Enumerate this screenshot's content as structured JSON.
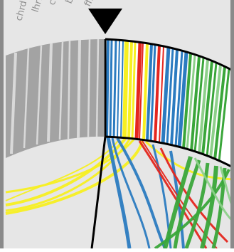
{
  "diagram": {
    "type": "circular-ideogram",
    "outer_labels": [
      "ffh",
      "borg",
      "chrf",
      "lhrf",
      "chrd"
    ],
    "colors": {
      "background": "#e6e6e6",
      "frame": "#8a8a8a",
      "ring_outline": "#000000",
      "grey_band": "#a3a3a3",
      "blue": "#2b7bc0",
      "yellow": "#f7ef21",
      "red": "#e4261e",
      "green": "#3aa63a",
      "light_green": "#8dd08a",
      "marker": "#000000",
      "label_text": "#8f8f8f"
    }
  }
}
